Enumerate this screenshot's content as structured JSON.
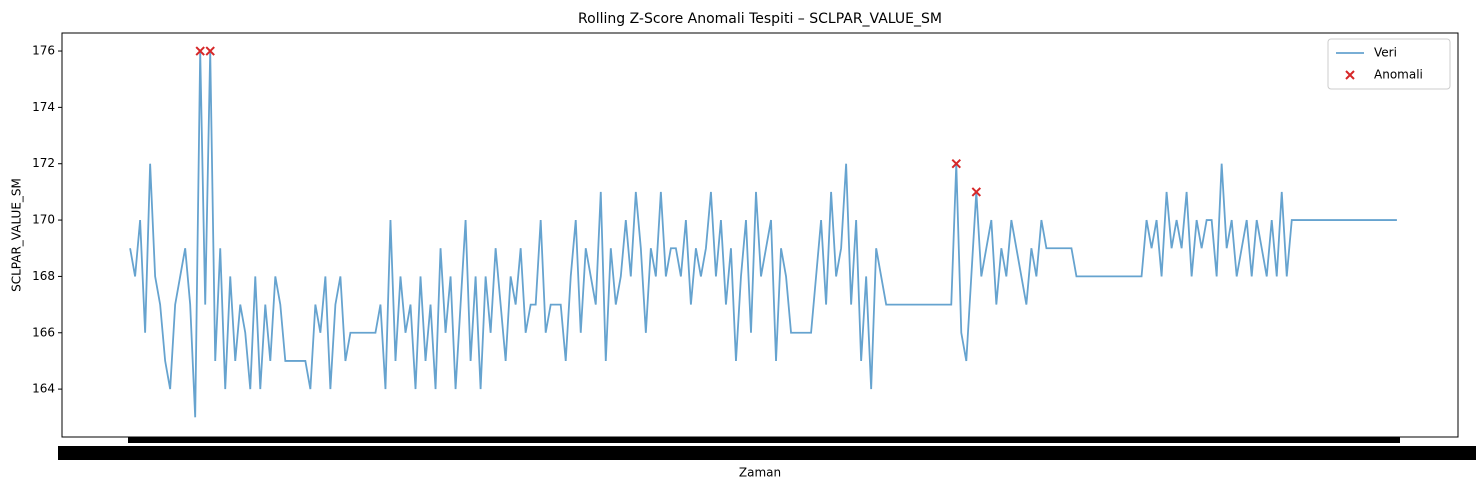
{
  "chart_data": {
    "type": "line",
    "title": "Rolling Z-Score Anomali Tespiti – SCLPAR_VALUE_SM",
    "xlabel": "Zaman",
    "ylabel": "SCLPAR_VALUE_SM",
    "xlim": [
      -13.6,
      265.2
    ],
    "ylim": [
      162.3,
      176.64
    ],
    "yticks": [
      164,
      166,
      168,
      170,
      172,
      174,
      176
    ],
    "legend": "upper right",
    "series": [
      {
        "name": "Veri",
        "kind": "line",
        "color": "#66a3cf",
        "values": [
          169,
          168,
          170,
          166,
          172,
          168,
          167,
          165,
          164,
          167,
          168,
          169,
          167,
          163,
          176,
          167,
          176,
          165,
          169,
          164,
          168,
          165,
          167,
          166,
          164,
          168,
          164,
          167,
          165,
          168,
          167,
          165,
          165,
          165,
          165,
          165,
          164,
          167,
          166,
          168,
          164,
          167,
          168,
          165,
          166,
          166,
          166,
          166,
          166,
          166,
          167,
          164,
          170,
          165,
          168,
          166,
          167,
          164,
          168,
          165,
          167,
          164,
          169,
          166,
          168,
          164,
          167,
          170,
          165,
          168,
          164,
          168,
          166,
          169,
          167,
          165,
          168,
          167,
          169,
          166,
          167,
          167,
          170,
          166,
          167,
          167,
          167,
          165,
          168,
          170,
          166,
          169,
          168,
          167,
          171,
          165,
          169,
          167,
          168,
          170,
          168,
          171,
          169,
          166,
          169,
          168,
          171,
          168,
          169,
          169,
          168,
          170,
          167,
          169,
          168,
          169,
          171,
          168,
          170,
          167,
          169,
          165,
          168,
          170,
          166,
          171,
          168,
          169,
          170,
          165,
          169,
          168,
          166,
          166,
          166,
          166,
          166,
          168,
          170,
          167,
          171,
          168,
          169,
          172,
          167,
          170,
          165,
          168,
          164,
          169,
          168,
          167,
          167,
          167,
          167,
          167,
          167,
          167,
          167,
          167,
          167,
          167,
          167,
          167,
          167,
          172,
          166,
          165,
          168,
          171,
          168,
          169,
          170,
          167,
          169,
          168,
          170,
          169,
          168,
          167,
          169,
          168,
          170,
          169,
          169,
          169,
          169,
          169,
          169,
          168,
          168,
          168,
          168,
          168,
          168,
          168,
          168,
          168,
          168,
          168,
          168,
          168,
          168,
          170,
          169,
          170,
          168,
          171,
          169,
          170,
          169,
          171,
          168,
          170,
          169,
          170,
          170,
          168,
          172,
          169,
          170,
          168,
          169,
          170,
          168,
          170,
          169,
          168,
          170,
          168,
          171,
          168,
          170,
          170,
          170,
          170,
          170,
          170,
          170,
          170,
          170,
          170,
          170,
          170,
          170,
          170,
          170,
          170,
          170,
          170,
          170,
          170,
          170,
          170
        ]
      },
      {
        "name": "Anomali",
        "kind": "scatter",
        "color": "#d62728",
        "x": [
          14,
          16,
          165,
          169
        ],
        "values": [
          176,
          176,
          172,
          171
        ]
      }
    ]
  }
}
